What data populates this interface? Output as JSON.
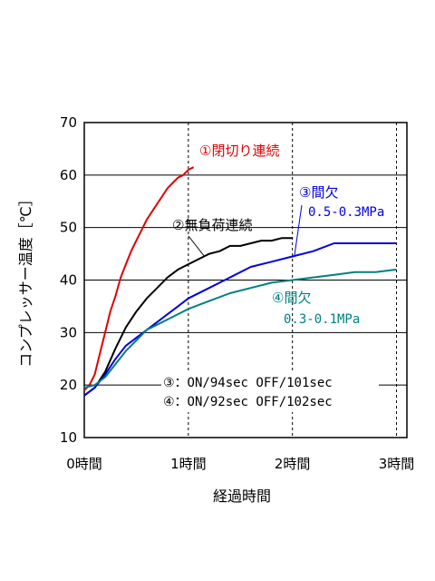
{
  "chart_data": {
    "type": "line",
    "title": "",
    "xlabel": "経過時間",
    "ylabel": "コンプレッサー温度［℃］",
    "xlim": [
      0,
      3.1
    ],
    "ylim": [
      10,
      70
    ],
    "x_ticks": [
      {
        "value": 0,
        "label": "0時間"
      },
      {
        "value": 1,
        "label": "1時間"
      },
      {
        "value": 2,
        "label": "2時間"
      },
      {
        "value": 3,
        "label": "3時間"
      }
    ],
    "y_ticks": [
      10,
      20,
      30,
      40,
      50,
      60,
      70
    ],
    "grid": {
      "horizontal": "solid",
      "vertical": "dashed"
    },
    "series": [
      {
        "name": "①閉切り連続",
        "color": "#e00000",
        "x": [
          0,
          0.05,
          0.1,
          0.15,
          0.2,
          0.25,
          0.3,
          0.35,
          0.4,
          0.45,
          0.5,
          0.55,
          0.6,
          0.65,
          0.7,
          0.75,
          0.8,
          0.85,
          0.9,
          0.95,
          1.0,
          1.05
        ],
        "y": [
          19,
          20,
          22,
          26,
          30,
          34,
          37,
          40.5,
          43,
          45.5,
          47.5,
          49.5,
          51.5,
          53,
          54.5,
          56,
          57.5,
          58.5,
          59.5,
          60,
          61,
          61.5
        ]
      },
      {
        "name": "②無負荷連続",
        "color": "#000000",
        "x": [
          0,
          0.1,
          0.2,
          0.3,
          0.4,
          0.5,
          0.6,
          0.7,
          0.8,
          0.9,
          1.0,
          1.1,
          1.2,
          1.3,
          1.4,
          1.5,
          1.6,
          1.7,
          1.8,
          1.9,
          2.0
        ],
        "y": [
          18,
          19.5,
          22.5,
          27,
          31,
          34,
          36.5,
          38.5,
          40.5,
          42,
          43,
          44,
          45,
          45.5,
          46.5,
          46.5,
          47,
          47.5,
          47.5,
          48,
          48
        ]
      },
      {
        "name": "③間欠",
        "label_sub": "0.5-0.3MPa",
        "color": "#0000e0",
        "x": [
          0,
          0.1,
          0.2,
          0.3,
          0.4,
          0.5,
          0.6,
          0.7,
          0.8,
          0.9,
          1.0,
          1.2,
          1.4,
          1.6,
          1.8,
          2.0,
          2.2,
          2.4,
          2.6,
          2.8,
          3.0
        ],
        "y": [
          18,
          19.5,
          22,
          25,
          27.5,
          29,
          30.5,
          32,
          33.5,
          35,
          36.5,
          38.5,
          40.5,
          42.5,
          43.5,
          44.5,
          45.5,
          47,
          47,
          47,
          47
        ]
      },
      {
        "name": "④間欠",
        "label_sub": "0.3-0.1MPa",
        "color": "#008080",
        "x": [
          0,
          0.1,
          0.2,
          0.3,
          0.4,
          0.5,
          0.6,
          0.7,
          0.8,
          0.9,
          1.0,
          1.2,
          1.4,
          1.6,
          1.8,
          2.0,
          2.2,
          2.4,
          2.6,
          2.8,
          3.0
        ],
        "y": [
          19.5,
          20,
          21.5,
          24,
          26.5,
          28.5,
          30.5,
          31.5,
          32.5,
          33.5,
          34.5,
          36,
          37.5,
          38.5,
          39.5,
          40,
          40.5,
          41,
          41.5,
          41.5,
          42
        ]
      }
    ],
    "notes": [
      "③：ON/94sec OFF/101sec",
      "④：ON/92sec OFF/102sec"
    ]
  }
}
